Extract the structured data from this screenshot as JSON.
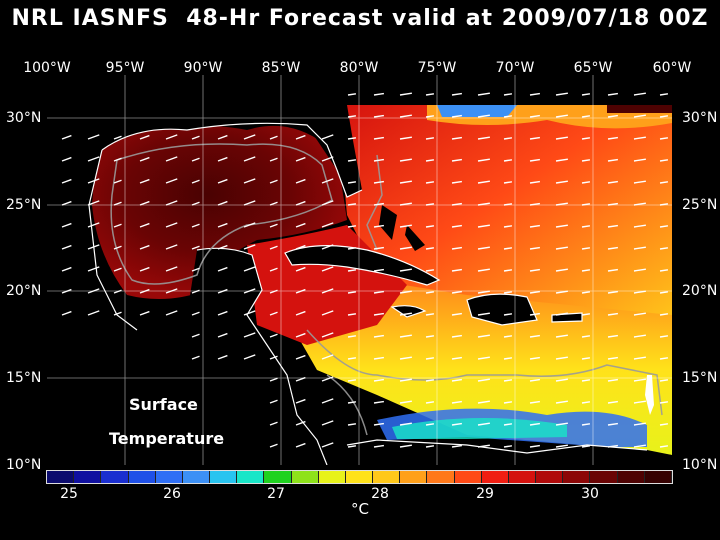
{
  "title": "NRL IASNFS  48-Hr Forecast valid at 2009/07/18 00Z",
  "lon_labels": [
    "100°W",
    "95°W",
    "90°W",
    "85°W",
    "80°W",
    "75°W",
    "70°W",
    "65°W",
    "60°W"
  ],
  "lat_labels": [
    "30°N",
    "25°N",
    "20°N",
    "15°N",
    "10°N"
  ],
  "overlay": {
    "line1": "Surface",
    "line2": "Temperature"
  },
  "colorbar": {
    "ticks": [
      "25",
      "26",
      "27",
      "28",
      "29",
      "30"
    ],
    "unit": "°C",
    "colors": [
      "#0b0b6e",
      "#1010a0",
      "#1a2ed0",
      "#1f50e8",
      "#2f6ff5",
      "#3c90f5",
      "#28c4f0",
      "#18e6c8",
      "#1fd21f",
      "#8ee21a",
      "#e8f21a",
      "#ffe21a",
      "#ffc81a",
      "#ffa01a",
      "#ff781a",
      "#ff4a16",
      "#f01e12",
      "#d4120e",
      "#b00a0a",
      "#8c0707",
      "#6a0404",
      "#4e0202",
      "#360101"
    ]
  }
}
